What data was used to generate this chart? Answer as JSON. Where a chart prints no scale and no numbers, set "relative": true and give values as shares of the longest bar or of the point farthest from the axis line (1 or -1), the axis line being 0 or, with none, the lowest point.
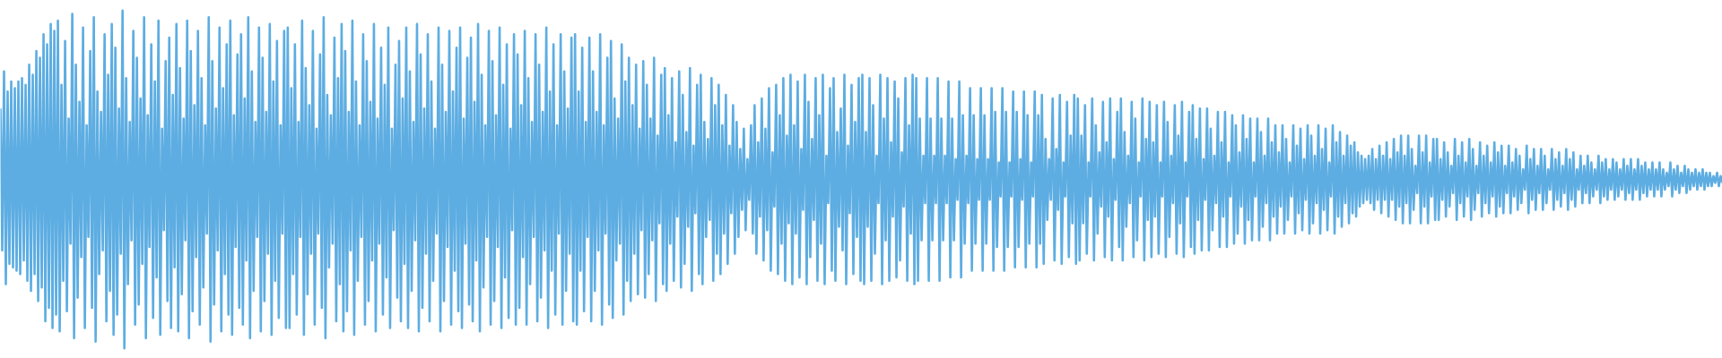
{
  "chart_data": {
    "type": "line",
    "relative": true,
    "line_style": "solid",
    "categories": [
      null,
      null,
      null,
      null,
      null,
      null,
      null,
      null,
      null,
      null,
      null,
      null,
      null,
      null,
      null,
      null,
      null,
      null,
      null,
      null,
      null,
      null,
      null,
      null,
      null,
      null,
      null,
      null,
      null,
      null,
      null,
      null,
      null,
      null,
      null,
      null,
      null,
      null,
      null,
      null,
      null,
      null,
      null,
      null,
      null,
      null,
      null,
      null,
      null,
      null,
      null,
      null,
      null,
      null,
      null,
      null,
      null,
      null,
      null,
      null,
      null,
      null,
      null,
      null,
      null,
      null,
      null,
      null,
      null,
      null,
      null,
      null,
      null,
      null,
      null,
      null,
      null,
      null,
      null,
      null,
      null,
      null,
      null,
      null,
      null,
      null,
      null,
      null,
      null,
      null,
      null,
      null,
      null,
      null,
      null,
      null,
      null,
      null,
      null,
      null,
      null,
      null,
      null,
      null,
      null,
      null,
      null,
      null,
      null,
      null,
      null,
      null,
      null,
      null,
      null,
      null,
      null,
      null,
      null,
      null,
      null,
      null,
      null,
      null,
      null,
      null,
      null,
      null,
      null,
      null,
      null,
      null,
      null,
      null,
      null,
      null,
      null,
      null,
      null,
      null,
      null,
      null,
      null,
      null,
      null,
      null,
      null,
      null,
      null,
      null,
      null,
      null,
      null,
      null,
      null,
      null,
      null,
      null,
      null,
      null,
      null,
      null,
      null,
      null,
      null,
      null,
      null,
      null,
      null,
      null,
      null,
      null,
      null,
      null,
      null,
      null,
      null,
      null,
      null,
      null,
      null,
      null,
      null,
      null,
      null,
      null,
      null,
      null,
      null,
      null,
      null,
      null,
      null,
      null,
      null,
      null,
      null,
      null,
      null,
      null,
      null,
      null,
      null,
      null,
      null,
      null,
      null,
      null,
      null,
      null,
      null,
      null,
      null,
      null,
      null,
      null,
      null,
      null,
      null,
      null,
      null,
      null,
      null,
      null,
      null,
      null,
      null,
      null,
      null,
      null,
      null,
      null,
      null,
      null,
      null,
      null,
      null,
      null,
      null,
      null,
      null,
      null,
      null,
      null,
      null,
      null,
      null,
      null,
      null,
      null,
      null,
      null,
      null,
      null,
      null,
      null,
      null,
      null,
      null,
      null,
      null,
      null,
      null,
      null,
      null,
      null,
      null,
      null,
      null,
      null,
      null,
      null,
      null,
      null,
      null,
      null,
      null,
      null,
      null,
      null,
      null,
      null,
      null,
      null,
      null,
      null,
      null,
      null,
      null,
      null,
      null,
      null,
      null,
      null,
      null,
      null,
      null,
      null,
      null,
      null,
      null,
      null,
      null,
      null,
      null,
      null,
      null,
      null,
      null,
      null,
      null,
      null,
      null,
      null,
      null,
      null,
      null,
      null,
      null,
      null,
      null,
      null,
      null,
      null,
      null,
      null,
      null,
      null,
      null,
      null,
      null,
      null,
      null,
      null,
      null,
      null,
      null,
      null,
      null,
      null,
      null,
      null,
      null,
      null,
      null,
      null,
      null,
      null,
      null,
      null,
      null,
      null,
      null,
      null,
      null,
      null,
      null,
      null,
      null,
      null,
      null,
      null,
      null,
      null,
      null,
      null,
      null,
      null,
      null,
      null,
      null,
      null,
      null,
      null,
      null,
      null,
      null,
      null,
      null,
      null,
      null,
      null,
      null,
      null,
      null,
      null,
      null,
      null,
      null,
      null,
      null,
      null,
      null,
      null,
      null,
      null,
      null,
      null,
      null,
      null,
      null,
      null,
      null,
      null,
      null,
      null,
      null,
      null,
      null,
      null,
      null,
      null,
      null,
      null,
      null,
      null,
      null,
      null,
      null,
      null,
      null,
      null,
      null,
      null,
      null,
      null,
      null,
      null,
      null,
      null,
      null,
      null,
      null,
      null,
      null,
      null,
      null,
      null,
      null,
      null,
      null,
      null,
      null,
      null,
      null,
      null,
      null,
      null,
      null,
      null,
      null,
      null,
      null,
      null,
      null,
      null,
      null,
      null,
      null,
      null,
      null,
      null,
      null,
      null,
      null,
      null,
      null,
      null,
      null,
      null,
      null,
      null,
      null,
      null,
      null,
      null,
      null,
      null,
      null,
      null,
      null,
      null,
      null,
      null,
      null,
      null,
      null,
      null,
      null,
      null,
      null,
      null,
      null,
      null,
      null,
      null,
      null,
      null,
      null,
      null,
      null,
      null,
      null,
      null,
      null,
      null,
      null,
      null,
      null,
      null,
      null,
      null,
      null,
      null,
      null,
      null,
      null,
      null,
      null,
      null,
      null,
      null,
      null,
      null,
      null,
      null,
      null,
      null,
      null,
      null,
      null,
      null,
      null,
      null,
      null,
      null,
      null,
      null,
      null,
      null,
      null,
      null,
      null,
      null,
      null,
      null,
      null,
      null,
      null,
      null,
      null,
      null,
      null,
      null,
      null,
      null,
      null,
      null,
      null,
      null,
      null,
      null,
      null,
      null,
      null,
      null,
      null,
      null,
      null,
      null,
      null,
      null,
      null,
      null,
      null,
      null,
      null,
      null,
      null,
      null,
      null,
      null,
      null,
      null,
      null,
      null,
      null,
      null,
      null,
      null,
      null,
      null,
      null,
      null,
      null,
      null,
      null,
      null,
      null,
      null,
      null,
      null,
      null,
      null,
      null,
      null,
      null,
      null,
      null,
      null,
      null,
      null,
      null,
      null,
      null,
      null,
      null,
      null,
      null,
      null,
      null,
      null,
      null,
      null,
      null,
      null,
      null,
      null,
      null,
      null,
      null,
      null,
      null,
      null,
      null,
      null,
      null,
      null,
      null,
      null,
      null,
      null,
      null,
      null,
      null,
      null,
      null,
      null,
      null,
      null,
      null,
      null,
      null,
      null,
      null,
      null,
      null,
      null,
      null,
      null,
      null,
      null,
      null,
      null,
      null,
      null,
      null,
      null,
      null,
      null,
      null,
      null,
      null,
      null,
      null,
      null,
      null,
      null,
      null,
      null,
      null,
      null,
      null,
      null,
      null,
      null,
      null,
      null,
      null,
      null,
      null,
      null,
      null,
      null,
      null,
      null,
      null,
      null,
      null,
      null,
      null,
      null,
      null,
      null,
      null,
      null,
      null,
      null,
      null,
      null,
      null,
      null,
      null,
      null,
      null,
      null,
      null,
      null,
      null,
      null,
      null,
      null,
      null,
      null,
      null,
      null,
      null,
      null,
      null,
      null,
      null,
      null,
      null,
      null,
      null,
      null,
      null,
      null,
      null,
      null,
      null,
      null,
      null,
      null,
      null,
      null,
      null,
      null,
      null,
      null,
      null,
      null,
      null,
      null,
      null,
      null,
      null,
      null,
      null,
      null,
      null,
      null,
      null,
      null,
      null,
      null,
      null,
      null,
      null,
      null,
      null,
      null,
      null,
      null,
      null,
      null,
      null,
      null,
      null,
      null,
      null,
      null,
      null,
      null,
      null,
      null,
      null,
      null,
      null,
      null,
      null,
      null,
      null,
      null,
      null,
      null,
      null,
      null,
      null,
      null,
      null,
      null,
      null,
      null,
      null,
      null,
      null,
      null,
      null,
      null,
      null,
      null,
      null,
      null,
      null,
      null,
      null,
      null,
      null,
      null,
      null,
      null,
      null,
      null,
      null,
      null,
      null,
      null,
      null,
      null,
      null,
      null,
      null,
      null,
      null,
      null,
      null,
      null,
      null,
      null,
      null,
      null,
      null,
      null,
      null,
      null,
      null,
      null,
      null,
      null,
      null,
      null,
      null,
      null,
      null,
      null,
      null,
      null,
      null,
      null,
      null,
      null,
      null,
      null,
      null,
      null,
      null,
      null,
      null,
      null,
      null,
      null,
      null,
      null,
      null,
      null,
      null,
      null,
      null,
      null,
      null,
      null,
      null,
      null,
      null,
      null,
      null,
      null,
      null,
      null,
      null,
      null,
      null,
      null,
      null,
      null,
      null,
      null,
      null,
      null,
      null,
      null,
      null,
      null,
      null,
      null,
      null,
      null,
      null,
      null,
      null,
      null,
      null,
      null,
      null,
      null,
      null,
      null,
      null,
      null,
      null,
      null,
      null,
      null,
      null,
      null,
      null,
      null,
      null,
      null,
      null,
      null,
      null,
      null,
      null,
      null,
      null,
      null,
      null,
      null,
      null,
      null,
      null,
      null,
      null,
      null,
      null,
      null,
      null,
      null,
      null,
      null,
      null,
      null,
      null,
      null,
      null,
      null,
      null,
      null
    ],
    "series": [
      {
        "color": "#5dade2",
        "values": [
          0.71,
          0.29,
          0.82,
          0.19,
          0.76,
          0.25,
          0.79,
          0.24,
          0.77,
          0.23,
          0.79,
          0.22,
          0.8,
          0.26,
          0.78,
          0.2,
          0.84,
          0.17,
          0.81,
          0.22,
          0.88,
          0.14,
          0.86,
          0.18,
          0.93,
          0.08,
          0.9,
          0.12,
          0.96,
          0.06,
          0.94,
          0.1,
          0.97,
          0.05,
          0.78,
          0.2,
          0.91,
          0.11,
          0.68,
          0.31,
          0.99,
          0.03,
          0.84,
          0.15,
          0.73,
          0.27,
          0.95,
          0.06,
          0.66,
          0.33,
          0.88,
          0.12,
          0.98,
          0.02,
          0.76,
          0.22,
          0.7,
          0.29,
          0.93,
          0.08,
          0.81,
          0.17,
          0.96,
          0.04,
          0.89,
          0.1,
          0.71,
          0.28,
          1.0,
          0.0,
          0.8,
          0.19,
          0.67,
          0.32,
          0.94,
          0.07,
          0.86,
          0.13,
          0.74,
          0.25,
          0.98,
          0.03,
          0.69,
          0.3,
          0.9,
          0.09,
          0.79,
          0.21,
          0.97,
          0.04,
          0.65,
          0.35,
          0.85,
          0.14,
          0.92,
          0.06,
          0.75,
          0.24,
          0.96,
          0.05,
          0.83,
          0.16,
          0.68,
          0.32,
          0.97,
          0.03,
          0.88,
          0.11,
          0.72,
          0.27,
          0.94,
          0.07,
          0.8,
          0.18,
          0.66,
          0.34,
          0.98,
          0.02,
          0.85,
          0.13,
          0.71,
          0.29,
          0.95,
          0.05,
          0.77,
          0.22,
          0.9,
          0.1,
          0.97,
          0.04,
          0.69,
          0.3,
          0.87,
          0.12,
          0.93,
          0.07,
          0.74,
          0.26,
          0.98,
          0.03,
          0.82,
          0.17,
          0.67,
          0.33,
          0.95,
          0.05,
          0.86,
          0.14,
          0.7,
          0.28,
          0.96,
          0.04,
          0.79,
          0.2,
          0.91,
          0.09,
          0.66,
          0.34,
          0.94,
          0.06,
          0.95,
          0.06,
          0.77,
          0.22,
          0.9,
          0.1,
          0.67,
          0.33,
          0.97,
          0.04,
          0.83,
          0.16,
          0.72,
          0.28,
          0.94,
          0.07,
          0.65,
          0.34,
          0.87,
          0.12,
          0.98,
          0.03,
          0.75,
          0.24,
          0.69,
          0.31,
          0.92,
          0.08,
          0.8,
          0.19,
          0.96,
          0.05,
          0.88,
          0.11,
          0.7,
          0.29,
          0.97,
          0.04,
          0.79,
          0.2,
          0.66,
          0.33,
          0.93,
          0.07,
          0.85,
          0.14,
          0.73,
          0.26,
          0.96,
          0.05,
          0.68,
          0.31,
          0.89,
          0.1,
          0.78,
          0.21,
          0.95,
          0.06,
          0.65,
          0.35,
          0.84,
          0.15,
          0.91,
          0.08,
          0.74,
          0.25,
          0.95,
          0.06,
          0.82,
          0.17,
          0.67,
          0.32,
          0.96,
          0.05,
          0.87,
          0.12,
          0.71,
          0.28,
          0.93,
          0.08,
          0.79,
          0.2,
          0.65,
          0.34,
          0.95,
          0.05,
          0.84,
          0.14,
          0.7,
          0.3,
          0.94,
          0.07,
          0.76,
          0.23,
          0.89,
          0.11,
          0.95,
          0.06,
          0.68,
          0.31,
          0.86,
          0.13,
          0.92,
          0.08,
          0.73,
          0.26,
          0.96,
          0.05,
          0.81,
          0.18,
          0.66,
          0.33,
          0.94,
          0.07,
          0.85,
          0.14,
          0.69,
          0.3,
          0.95,
          0.06,
          0.78,
          0.21,
          0.9,
          0.09,
          0.65,
          0.35,
          0.93,
          0.07,
          0.87,
          0.12,
          0.72,
          0.27,
          0.94,
          0.07,
          0.8,
          0.19,
          0.67,
          0.33,
          0.93,
          0.08,
          0.84,
          0.15,
          0.7,
          0.29,
          0.95,
          0.06,
          0.76,
          0.23,
          0.9,
          0.1,
          0.66,
          0.34,
          0.93,
          0.07,
          0.82,
          0.17,
          0.71,
          0.28,
          0.92,
          0.08,
          0.93,
          0.07,
          0.76,
          0.23,
          0.89,
          0.11,
          0.67,
          0.33,
          0.92,
          0.08,
          0.82,
          0.17,
          0.7,
          0.29,
          0.93,
          0.07,
          0.66,
          0.34,
          0.86,
          0.13,
          0.91,
          0.09,
          0.74,
          0.26,
          0.68,
          0.31,
          0.9,
          0.1,
          0.79,
          0.2,
          0.86,
          0.14,
          0.72,
          0.28,
          0.84,
          0.16,
          0.65,
          0.35,
          0.85,
          0.15,
          0.78,
          0.22,
          0.68,
          0.32,
          0.86,
          0.14,
          0.63,
          0.37,
          0.81,
          0.19,
          0.83,
          0.17,
          0.69,
          0.31,
          0.8,
          0.2,
          0.61,
          0.39,
          0.82,
          0.18,
          0.75,
          0.25,
          0.64,
          0.36,
          0.83,
          0.17,
          0.6,
          0.4,
          0.78,
          0.22,
          0.81,
          0.19,
          0.67,
          0.33,
          0.62,
          0.38,
          0.8,
          0.2,
          0.72,
          0.28,
          0.78,
          0.22,
          0.66,
          0.34,
          0.75,
          0.25,
          0.6,
          0.4,
          0.72,
          0.28,
          0.67,
          0.33,
          0.59,
          0.41,
          0.65,
          0.35,
          0.56,
          0.44,
          0.66,
          0.34,
          0.72,
          0.28,
          0.61,
          0.39,
          0.74,
          0.26,
          0.65,
          0.35,
          0.77,
          0.23,
          0.58,
          0.42,
          0.78,
          0.22,
          0.69,
          0.31,
          0.8,
          0.2,
          0.63,
          0.37,
          0.81,
          0.19,
          0.66,
          0.34,
          0.79,
          0.21,
          0.59,
          0.41,
          0.81,
          0.19,
          0.73,
          0.27,
          0.62,
          0.38,
          0.8,
          0.2,
          0.69,
          0.31,
          0.81,
          0.19,
          0.57,
          0.43,
          0.77,
          0.23,
          0.8,
          0.2,
          0.64,
          0.36,
          0.71,
          0.29,
          0.81,
          0.19,
          0.6,
          0.4,
          0.78,
          0.22,
          0.67,
          0.33,
          0.8,
          0.2,
          0.81,
          0.19,
          0.64,
          0.36,
          0.8,
          0.2,
          0.72,
          0.28,
          0.57,
          0.43,
          0.81,
          0.19,
          0.68,
          0.32,
          0.8,
          0.2,
          0.61,
          0.39,
          0.79,
          0.21,
          0.74,
          0.26,
          0.58,
          0.42,
          0.8,
          0.2,
          0.66,
          0.34,
          0.81,
          0.19,
          0.8,
          0.2,
          0.68,
          0.32,
          0.57,
          0.43,
          0.8,
          0.2,
          0.68,
          0.32,
          0.57,
          0.43,
          0.8,
          0.2,
          0.68,
          0.32,
          0.57,
          0.43,
          0.79,
          0.21,
          0.68,
          0.32,
          0.56,
          0.44,
          0.79,
          0.21,
          0.69,
          0.31,
          0.57,
          0.43,
          0.77,
          0.23,
          0.69,
          0.31,
          0.56,
          0.44,
          0.77,
          0.23,
          0.69,
          0.31,
          0.56,
          0.44,
          0.77,
          0.23,
          0.7,
          0.3,
          0.55,
          0.45,
          0.77,
          0.23,
          0.7,
          0.3,
          0.55,
          0.45,
          0.76,
          0.24,
          0.7,
          0.3,
          0.56,
          0.44,
          0.76,
          0.24,
          0.69,
          0.31,
          0.55,
          0.45,
          0.76,
          0.24,
          0.69,
          0.31,
          0.75,
          0.25,
          0.62,
          0.38,
          0.56,
          0.44,
          0.74,
          0.26,
          0.59,
          0.41,
          0.75,
          0.25,
          0.55,
          0.45,
          0.73,
          0.27,
          0.63,
          0.37,
          0.75,
          0.25,
          0.74,
          0.26,
          0.63,
          0.37,
          0.72,
          0.28,
          0.55,
          0.45,
          0.74,
          0.26,
          0.66,
          0.34,
          0.58,
          0.42,
          0.73,
          0.27,
          0.61,
          0.39,
          0.74,
          0.26,
          0.56,
          0.44,
          0.7,
          0.3,
          0.74,
          0.26,
          0.64,
          0.36,
          0.57,
          0.43,
          0.73,
          0.27,
          0.68,
          0.32,
          0.55,
          0.45,
          0.74,
          0.26,
          0.62,
          0.38,
          0.73,
          0.27,
          0.61,
          0.39,
          0.72,
          0.28,
          0.55,
          0.45,
          0.73,
          0.27,
          0.67,
          0.33,
          0.57,
          0.43,
          0.72,
          0.28,
          0.63,
          0.37,
          0.73,
          0.27,
          0.55,
          0.45,
          0.7,
          0.3,
          0.72,
          0.28,
          0.62,
          0.38,
          0.71,
          0.29,
          0.56,
          0.44,
          0.71,
          0.29,
          0.65,
          0.35,
          0.57,
          0.43,
          0.7,
          0.3,
          0.61,
          0.39,
          0.7,
          0.3,
          0.55,
          0.45,
          0.69,
          0.31,
          0.66,
          0.34,
          0.58,
          0.42,
          0.69,
          0.31,
          0.62,
          0.38,
          0.68,
          0.32,
          0.55,
          0.45,
          0.68,
          0.32,
          0.64,
          0.36,
          0.57,
          0.43,
          0.68,
          0.32,
          0.61,
          0.39,
          0.66,
          0.34,
          0.58,
          0.42,
          0.66,
          0.34,
          0.62,
          0.38,
          0.55,
          0.45,
          0.66,
          0.34,
          0.6,
          0.4,
          0.65,
          0.35,
          0.56,
          0.44,
          0.66,
          0.34,
          0.63,
          0.37,
          0.57,
          0.43,
          0.66,
          0.34,
          0.59,
          0.41,
          0.65,
          0.35,
          0.55,
          0.45,
          0.66,
          0.34,
          0.61,
          0.39,
          0.64,
          0.36,
          0.57,
          0.43,
          0.63,
          0.37,
          0.6,
          0.4,
          0.61,
          0.39,
          0.58,
          0.42,
          0.57,
          0.43,
          0.56,
          0.44,
          0.57,
          0.43,
          0.59,
          0.41,
          0.56,
          0.44,
          0.6,
          0.4,
          0.57,
          0.44,
          0.61,
          0.39,
          0.56,
          0.44,
          0.62,
          0.38,
          0.58,
          0.42,
          0.63,
          0.37,
          0.57,
          0.43,
          0.63,
          0.37,
          0.59,
          0.41,
          0.54,
          0.46,
          0.63,
          0.37,
          0.58,
          0.42,
          0.63,
          0.37,
          0.55,
          0.45,
          0.62,
          0.38,
          0.62,
          0.38,
          0.56,
          0.44,
          0.61,
          0.39,
          0.58,
          0.42,
          0.54,
          0.46,
          0.62,
          0.38,
          0.57,
          0.43,
          0.61,
          0.39,
          0.55,
          0.45,
          0.62,
          0.38,
          0.59,
          0.41,
          0.54,
          0.46,
          0.61,
          0.39,
          0.57,
          0.43,
          0.6,
          0.4,
          0.55,
          0.45,
          0.61,
          0.39,
          0.58,
          0.42,
          0.6,
          0.4,
          0.54,
          0.46,
          0.6,
          0.4,
          0.55,
          0.45,
          0.59,
          0.41,
          0.57,
          0.43,
          0.53,
          0.47,
          0.6,
          0.4,
          0.56,
          0.44,
          0.59,
          0.41,
          0.54,
          0.46,
          0.59,
          0.41,
          0.57,
          0.43,
          0.53,
          0.47,
          0.59,
          0.41,
          0.56,
          0.44,
          0.58,
          0.42,
          0.54,
          0.46,
          0.59,
          0.41,
          0.56,
          0.44,
          0.58,
          0.42,
          0.53,
          0.47,
          0.57,
          0.43,
          0.54,
          0.46,
          0.57,
          0.43,
          0.55,
          0.45,
          0.53,
          0.47,
          0.57,
          0.43,
          0.55,
          0.45,
          0.56,
          0.44,
          0.53,
          0.47,
          0.56,
          0.44,
          0.55,
          0.45,
          0.53,
          0.47,
          0.56,
          0.44,
          0.54,
          0.46,
          0.56,
          0.44,
          0.53,
          0.47,
          0.56,
          0.44,
          0.54,
          0.46,
          0.55,
          0.45,
          0.53,
          0.47,
          0.55,
          0.45,
          0.53,
          0.47,
          0.55,
          0.45,
          0.53,
          0.47,
          0.52,
          0.48,
          0.55,
          0.45,
          0.53,
          0.47,
          0.54,
          0.46,
          0.52,
          0.48,
          0.54,
          0.46,
          0.53,
          0.47,
          0.52,
          0.48,
          0.53,
          0.47,
          0.52,
          0.48,
          0.53,
          0.47,
          0.52,
          0.48,
          0.52,
          0.48,
          0.51,
          0.49,
          0.52,
          0.48,
          0.51,
          0.49
        ]
      }
    ]
  }
}
